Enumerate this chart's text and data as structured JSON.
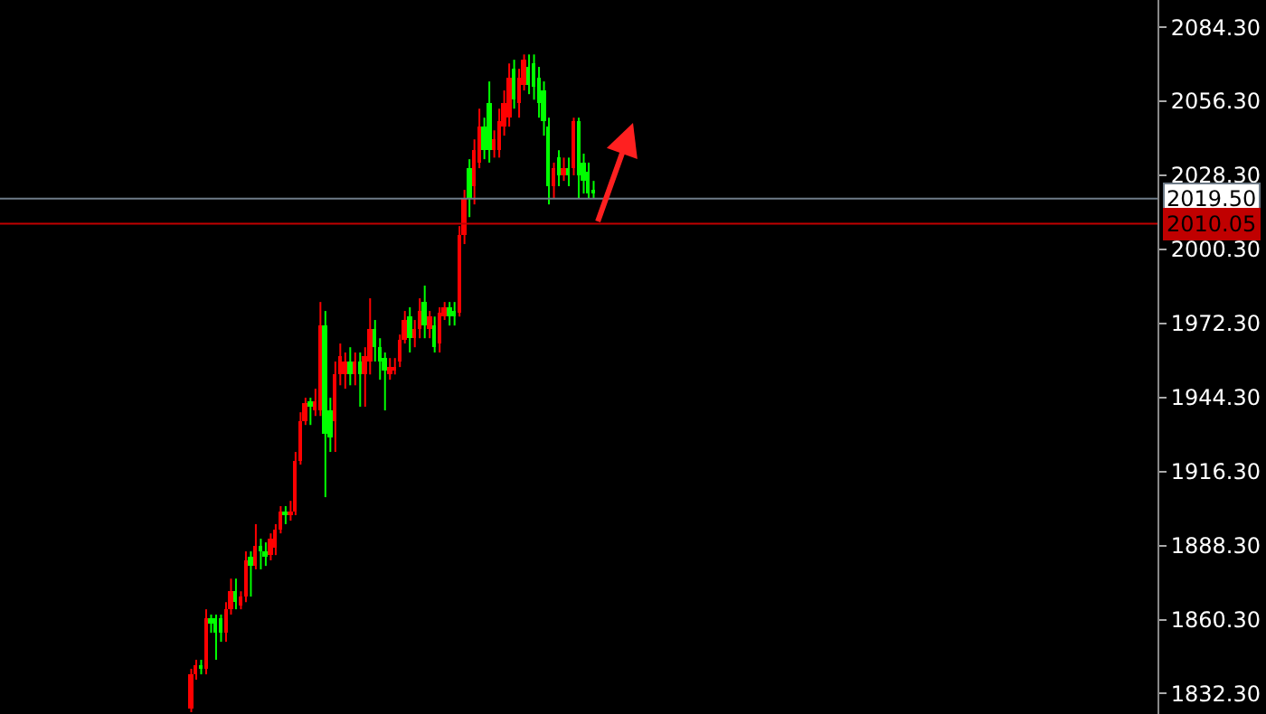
{
  "chart_data": {
    "type": "candlestick",
    "categories": [
      null,
      null,
      null,
      null,
      null,
      null,
      null,
      null,
      null,
      null,
      null,
      null,
      null,
      null,
      null,
      null,
      null,
      null,
      null,
      null,
      null,
      null,
      null,
      null,
      null,
      null,
      null,
      null,
      null,
      null,
      null,
      null,
      null,
      null,
      null,
      null,
      null,
      null,
      null,
      null,
      null,
      null,
      null,
      null,
      null,
      null,
      null,
      null,
      null,
      null,
      null,
      null,
      null,
      null,
      null,
      null,
      null,
      null,
      null,
      null,
      null,
      null,
      null,
      null,
      null,
      null,
      null,
      null,
      null,
      null,
      null,
      null,
      null,
      null,
      null,
      null,
      null,
      null,
      null,
      null,
      null,
      null,
      null,
      null,
      null,
      null,
      null,
      null,
      null,
      null,
      null,
      null,
      null,
      null,
      null,
      null,
      null,
      null,
      null,
      null,
      null,
      null,
      null,
      null,
      null,
      null,
      null,
      null,
      null,
      null,
      null,
      null,
      null,
      null,
      null,
      null,
      null,
      null,
      null,
      null,
      null,
      null,
      null,
      null,
      null,
      null,
      null,
      null,
      null,
      null,
      null,
      null,
      null,
      null,
      null,
      null,
      null,
      null,
      null,
      null,
      null,
      null,
      null,
      null,
      null,
      null,
      null,
      null,
      null,
      null,
      null,
      null,
      null,
      null,
      null,
      null,
      null,
      null,
      null,
      null,
      null,
      null,
      null,
      null,
      null,
      null,
      null,
      null,
      null,
      null,
      null,
      null,
      null,
      null,
      null,
      null,
      null,
      null,
      null,
      null,
      null,
      null,
      null,
      null,
      null,
      null,
      null,
      null,
      null,
      null,
      null,
      null,
      null,
      null,
      null,
      null,
      null,
      null,
      null,
      null,
      null,
      null,
      null,
      null,
      null,
      null,
      null,
      null,
      null,
      null,
      null,
      null,
      null,
      null,
      null,
      null,
      null,
      null,
      null,
      null,
      null,
      null,
      null,
      null,
      null,
      null,
      null,
      null,
      null,
      null,
      null,
      null,
      null
    ],
    "ohlc": [
      null,
      null,
      null,
      null,
      null,
      null,
      null,
      null,
      null,
      null,
      null,
      null,
      null,
      null,
      null,
      null,
      null,
      null,
      null,
      null,
      null,
      null,
      null,
      null,
      null,
      null,
      null,
      null,
      null,
      null,
      null,
      null,
      null,
      null,
      null,
      null,
      null,
      null,
      [
        1826.6,
        1841.7,
        1825.3,
        1839.6
      ],
      [
        1839.6,
        1845.1,
        1837.6,
        1843.0
      ],
      [
        1843.0,
        1845.1,
        1839.6,
        1841.7
      ],
      [
        1841.7,
        1864.2,
        1839.6,
        1860.8
      ],
      [
        1860.8,
        1862.2,
        1855.3,
        1858.7
      ],
      [
        1860.8,
        1862.2,
        1845.1,
        1855.3
      ],
      [
        1860.8,
        1862.2,
        1851.9,
        1855.3
      ],
      [
        1855.3,
        1866.9,
        1851.9,
        1864.2
      ],
      [
        1864.2,
        1875.8,
        1862.2,
        1871.0
      ],
      [
        1871.0,
        1875.8,
        1864.2,
        1866.9
      ],
      [
        1865.6,
        1871.0,
        1864.2,
        1869.0
      ],
      [
        1869.0,
        1886.1,
        1866.9,
        1882.7
      ],
      [
        1884.1,
        1886.1,
        1869.0,
        1880.6
      ],
      [
        1880.6,
        1896.4,
        1879.3,
        1888.1
      ],
      [
        1888.1,
        1890.9,
        1879.3,
        1886.1
      ],
      [
        1886.1,
        1889.5,
        1880.6,
        1884.1
      ],
      [
        1884.7,
        1892.9,
        1882.7,
        1890.9
      ],
      [
        1887.5,
        1896.4,
        1884.7,
        1894.3
      ],
      [
        1894.3,
        1903.2,
        1892.9,
        1901.1
      ],
      [
        1901.1,
        1903.2,
        1896.4,
        1899.8
      ],
      [
        1899.8,
        1905.2,
        1897.7,
        1901.1
      ],
      [
        1901.1,
        1923.7,
        1899.8,
        1920.3
      ],
      [
        1920.3,
        1938.7,
        1918.9,
        1935.3
      ],
      [
        1935.3,
        1944.2,
        1933.9,
        1942.1
      ],
      [
        1942.8,
        1944.2,
        1933.9,
        1940.8
      ],
      [
        1939.4,
        1947.6,
        1937.3,
        1942.8
      ],
      [
        1939.4,
        1980.4,
        1937.3,
        1971.5
      ],
      [
        1971.5,
        1977.0,
        1906.6,
        1930.5
      ],
      [
        1939.4,
        1944.2,
        1923.7,
        1929.1
      ],
      [
        1935.3,
        1957.9,
        1923.7,
        1953.0
      ],
      [
        1953.0,
        1964.7,
        1948.9,
        1959.9
      ],
      [
        1953.0,
        1961.3,
        1947.6,
        1957.9
      ],
      [
        1957.9,
        1963.3,
        1948.9,
        1953.0
      ],
      [
        1953.0,
        1961.3,
        1948.9,
        1957.9
      ],
      [
        1957.9,
        1961.3,
        1940.8,
        1953.0
      ],
      [
        1953.0,
        1963.3,
        1940.8,
        1959.9
      ],
      [
        1957.9,
        1981.8,
        1953.0,
        1970.2
      ],
      [
        1970.2,
        1973.6,
        1957.9,
        1963.3
      ],
      [
        1963.3,
        1966.7,
        1951.0,
        1957.9
      ],
      [
        1959.2,
        1961.3,
        1939.4,
        1954.4
      ],
      [
        1953.0,
        1959.2,
        1951.0,
        1955.8
      ],
      [
        1954.4,
        1959.2,
        1953.0,
        1955.8
      ],
      [
        1957.9,
        1968.1,
        1955.8,
        1966.0
      ],
      [
        1966.0,
        1977.0,
        1964.7,
        1973.6
      ],
      [
        1974.9,
        1978.4,
        1961.3,
        1966.7
      ],
      [
        1966.7,
        1973.6,
        1963.3,
        1970.2
      ],
      [
        1970.2,
        1981.8,
        1966.7,
        1977.0
      ],
      [
        1980.4,
        1986.6,
        1966.7,
        1971.5
      ],
      [
        1970.2,
        1977.0,
        1966.7,
        1974.9
      ],
      [
        1971.5,
        1974.9,
        1961.3,
        1963.3
      ],
      [
        1964.7,
        1978.4,
        1961.3,
        1976.3
      ],
      [
        1974.9,
        1980.4,
        1973.6,
        1978.4
      ],
      [
        1978.4,
        1980.4,
        1971.5,
        1974.9
      ],
      [
        1977.0,
        1980.4,
        1971.5,
        1974.9
      ],
      [
        1976.3,
        2009.1,
        1974.9,
        2005.7
      ],
      [
        2005.7,
        2022.8,
        2002.3,
        2019.4
      ],
      [
        2031.0,
        2034.4,
        2012.5,
        2019.4
      ],
      [
        2024.2,
        2041.9,
        2017.3,
        2037.8
      ],
      [
        2033.1,
        2053.5,
        2031.0,
        2046.7
      ],
      [
        2046.7,
        2050.1,
        2034.4,
        2037.8
      ],
      [
        2055.6,
        2063.8,
        2033.1,
        2037.8
      ],
      [
        2037.8,
        2045.3,
        2035.0,
        2041.9
      ],
      [
        2037.8,
        2053.5,
        2035.0,
        2048.8
      ],
      [
        2046.7,
        2060.4,
        2043.3,
        2055.6
      ],
      [
        2050.1,
        2070.6,
        2046.7,
        2065.2
      ],
      [
        2068.6,
        2072.0,
        2053.5,
        2056.9
      ],
      [
        2055.6,
        2068.6,
        2050.1,
        2065.2
      ],
      [
        2062.4,
        2074.0,
        2060.4,
        2072.0
      ],
      [
        2069.3,
        2074.0,
        2059.0,
        2062.4
      ],
      [
        2070.6,
        2074.0,
        2056.9,
        2061.7
      ],
      [
        2065.2,
        2069.3,
        2050.1,
        2055.6
      ],
      [
        2060.4,
        2063.8,
        2043.3,
        2048.8
      ],
      [
        2046.7,
        2050.1,
        2017.3,
        2024.2
      ],
      [
        2024.2,
        2033.1,
        2019.4,
        2031.0
      ],
      [
        2035.0,
        2037.8,
        2024.2,
        2028.3
      ],
      [
        2028.3,
        2035.0,
        2026.2,
        2031.0
      ],
      [
        2031.0,
        2035.0,
        2024.2,
        2028.3
      ],
      [
        2031.0,
        2050.1,
        2028.3,
        2048.8
      ],
      [
        2048.8,
        2050.1,
        2019.4,
        2028.3
      ],
      [
        2033.1,
        2036.5,
        2021.4,
        2026.2
      ],
      [
        2029.6,
        2033.1,
        2019.4,
        2021.4
      ],
      [
        2022.8,
        2026.2,
        2019.4,
        2021.4
      ],
      null,
      null,
      null,
      null,
      null,
      null,
      null,
      null,
      null,
      null,
      null,
      null,
      null,
      null,
      null,
      null,
      null,
      null,
      null,
      null,
      null,
      null,
      null,
      null,
      null,
      null,
      null,
      null,
      null,
      null,
      null,
      null,
      null,
      null,
      null,
      null,
      null,
      null,
      null,
      null,
      null,
      null,
      null,
      null,
      null,
      null,
      null,
      null,
      null,
      null,
      null,
      null,
      null,
      null,
      null,
      null,
      null,
      null,
      null,
      null,
      null,
      null,
      null,
      null,
      null,
      null,
      null,
      null,
      null,
      null,
      null,
      null,
      null,
      null,
      null,
      null,
      null,
      null,
      null,
      null,
      null,
      null,
      null,
      null,
      null,
      null,
      null,
      null,
      null,
      null,
      null,
      null,
      null,
      null,
      null,
      null,
      null,
      null,
      null,
      null,
      null,
      null,
      null,
      null,
      null,
      null,
      null,
      null,
      null,
      null,
      null,
      null,
      null
    ],
    "colors": [
      null,
      null,
      null,
      null,
      null,
      null,
      null,
      null,
      null,
      null,
      null,
      null,
      null,
      null,
      null,
      null,
      null,
      null,
      null,
      null,
      null,
      null,
      null,
      null,
      null,
      null,
      null,
      null,
      null,
      null,
      null,
      null,
      null,
      null,
      null,
      null,
      null,
      null,
      "#ff0000",
      "#ff0000",
      "#00ff00",
      "#ff0000",
      "#00ff00",
      "#00ff00",
      "#00ff00",
      "#ff0000",
      "#ff0000",
      "#00ff00",
      "#ff0000",
      "#ff0000",
      "#00ff00",
      "#ff0000",
      "#00ff00",
      "#00ff00",
      "#ff0000",
      "#ff0000",
      "#ff0000",
      "#00ff00",
      "#ff0000",
      "#ff0000",
      "#ff0000",
      "#ff0000",
      "#00ff00",
      "#ff0000",
      "#ff0000",
      "#00ff00",
      "#00ff00",
      "#ff0000",
      "#ff0000",
      "#ff0000",
      "#00ff00",
      "#ff0000",
      "#00ff00",
      "#ff0000",
      "#ff0000",
      "#00ff00",
      "#00ff00",
      "#00ff00",
      "#ff0000",
      "#ff0000",
      "#ff0000",
      "#ff0000",
      "#00ff00",
      "#ff0000",
      "#ff0000",
      "#00ff00",
      "#ff0000",
      "#00ff00",
      "#ff0000",
      "#ff0000",
      "#00ff00",
      "#00ff00",
      "#ff0000",
      "#ff0000",
      "#00ff00",
      "#ff0000",
      "#ff0000",
      "#00ff00",
      "#00ff00",
      "#ff0000",
      "#ff0000",
      "#ff0000",
      "#ff0000",
      "#00ff00",
      "#ff0000",
      "#ff0000",
      "#00ff00",
      "#00ff00",
      "#00ff00",
      "#00ff00",
      "#00ff00",
      "#ff0000",
      "#00ff00",
      "#ff0000",
      "#00ff00",
      "#ff0000",
      "#00ff00",
      "#00ff00",
      "#00ff00",
      "#00ff00",
      null,
      null,
      null,
      null,
      null,
      null,
      null,
      null,
      null,
      null,
      null,
      null,
      null,
      null,
      null,
      null,
      null,
      null,
      null,
      null,
      null,
      null,
      null,
      null,
      null,
      null,
      null,
      null,
      null,
      null,
      null,
      null,
      null,
      null,
      null,
      null,
      null,
      null,
      null,
      null,
      null,
      null,
      null,
      null,
      null,
      null,
      null,
      null,
      null,
      null,
      null,
      null,
      null,
      null,
      null,
      null,
      null,
      null,
      null,
      null,
      null,
      null,
      null,
      null,
      null,
      null,
      null,
      null,
      null,
      null,
      null,
      null,
      null,
      null,
      null,
      null,
      null,
      null,
      null,
      null,
      null,
      null,
      null,
      null,
      null,
      null,
      null,
      null,
      null,
      null,
      null,
      null,
      null,
      null,
      null,
      null,
      null,
      null,
      null,
      null,
      null,
      null,
      null,
      null,
      null,
      null,
      null,
      null,
      null,
      null,
      null,
      null,
      null
    ],
    "ylim": [
      1824.6,
      2094.6
    ],
    "yticks": [
      {
        "value": 1832.3,
        "label": "1832.30"
      },
      {
        "value": 1860.3,
        "label": "1860.30"
      },
      {
        "value": 1888.3,
        "label": "1888.30"
      },
      {
        "value": 1916.3,
        "label": "1916.30"
      },
      {
        "value": 1944.3,
        "label": "1944.30"
      },
      {
        "value": 1972.3,
        "label": "1972.30"
      },
      {
        "value": 2000.3,
        "label": "2000.30"
      },
      {
        "value": 2028.3,
        "label": "2028.30"
      },
      {
        "value": 2056.3,
        "label": "2056.30"
      },
      {
        "value": 2084.3,
        "label": "2084.30"
      }
    ],
    "ref_lines": [
      {
        "axis": "y",
        "value": 2019.5,
        "label": "2019.50",
        "color": "#6e7b88"
      },
      {
        "axis": "y",
        "value": 2010.05,
        "label": "2010.05",
        "color": "#c00000"
      }
    ],
    "grid": false,
    "legend": false,
    "tick_labels": "y"
  }
}
